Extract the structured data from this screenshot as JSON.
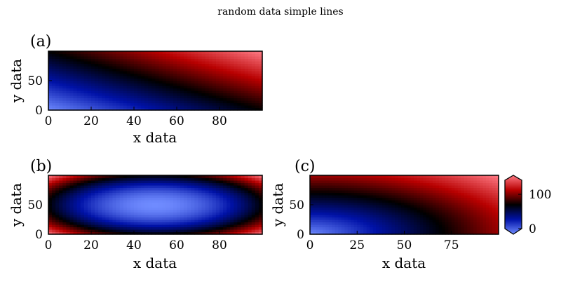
{
  "figure": {
    "title": "random data simple lines",
    "colormap": {
      "name": "seismic-like",
      "stops": [
        "#6f8bff",
        "#0012a8",
        "#000000",
        "#b80000",
        "#ff7a85"
      ]
    }
  },
  "chart_data": [
    {
      "id": "a",
      "panel_label": "(a)",
      "type": "heatmap",
      "xlabel": "x data",
      "ylabel": "y data",
      "x_ticks": [
        "0",
        "20",
        "40",
        "60",
        "80"
      ],
      "y_ticks": [
        "0",
        "50"
      ],
      "xlim": [
        0,
        100
      ],
      "ylim": [
        0,
        100
      ],
      "z_formula": "x + y",
      "z_range": [
        0,
        200
      ]
    },
    {
      "id": "b",
      "panel_label": "(b)",
      "type": "heatmap",
      "xlabel": "x data",
      "ylabel": "y data",
      "x_ticks": [
        "0",
        "20",
        "40",
        "60",
        "80"
      ],
      "y_ticks": [
        "0",
        "50"
      ],
      "xlim": [
        0,
        100
      ],
      "ylim": [
        0,
        100
      ],
      "z_formula": "(x-50)^2/2500*100 + (y-50)^2/2500*100",
      "z_range": [
        0,
        200
      ]
    },
    {
      "id": "c",
      "panel_label": "(c)",
      "type": "heatmap",
      "xlabel": "x data",
      "ylabel": "y data",
      "x_ticks": [
        "0",
        "25",
        "50",
        "75"
      ],
      "y_ticks": [
        "0",
        "50"
      ],
      "xlim": [
        0,
        100
      ],
      "ylim": [
        0,
        100
      ],
      "z_formula": "sqrt(x^2 + y^2)",
      "z_range": [
        0,
        141
      ],
      "colorbar": {
        "ticks": [
          "0",
          "100"
        ],
        "extend": "both"
      }
    }
  ]
}
